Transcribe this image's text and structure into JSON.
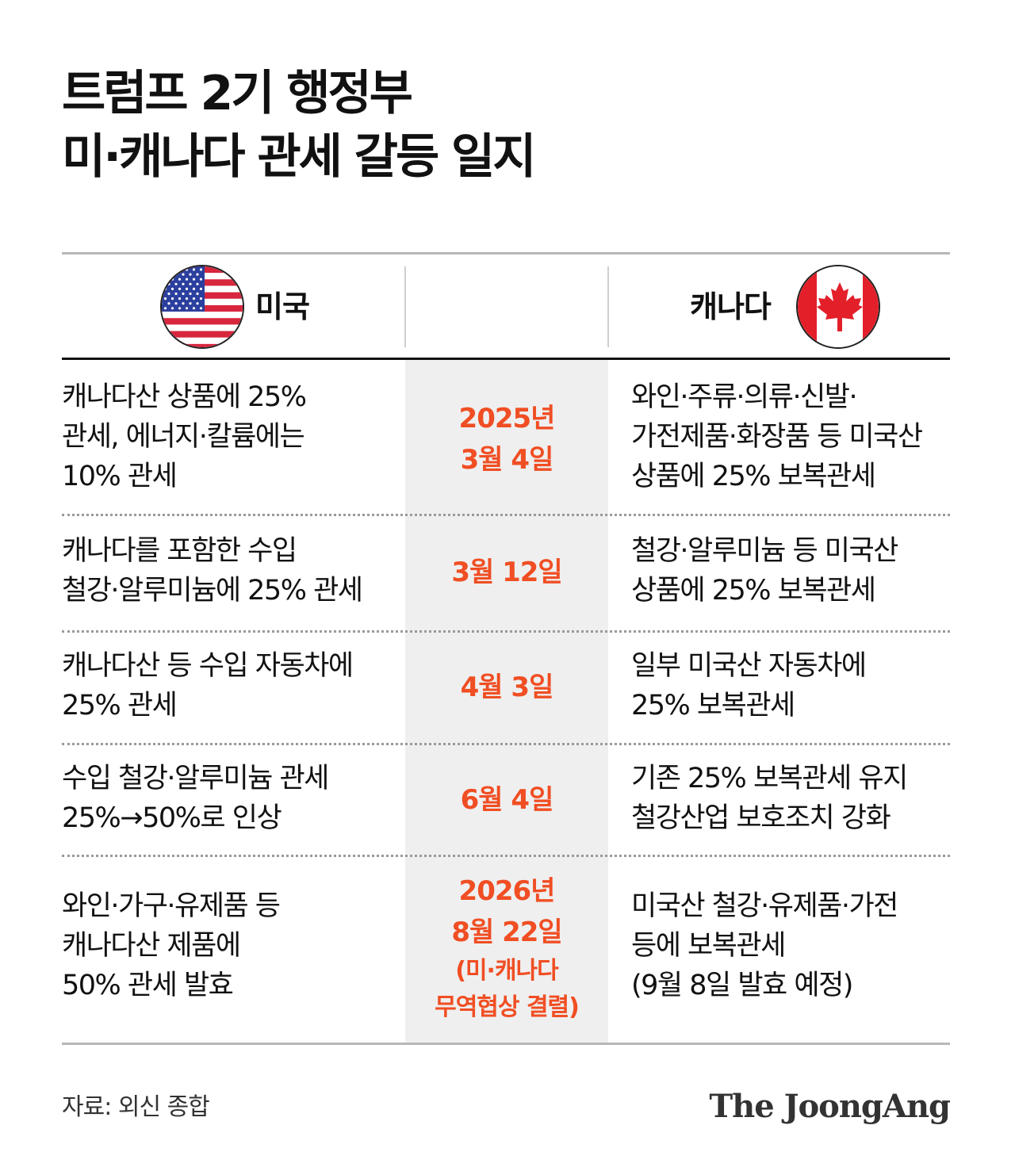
{
  "title": {
    "line1": "트럼프 2기 행정부",
    "line2": "미·캐나다 관세 갈등 일지"
  },
  "header": {
    "left_country": "미국",
    "right_country": "캐나다",
    "left_flag_icon": "us-flag-icon",
    "right_flag_icon": "canada-flag-icon"
  },
  "colors": {
    "accent": "#f04e23",
    "mid_column_bg": "#efefef",
    "us_red": "#d7263d",
    "us_blue": "#2b3f9e",
    "canada_red": "#e3202a"
  },
  "rows": [
    {
      "us": [
        "캐나다산 상품에 25%",
        "관세, 에너지·칼륨에는",
        "10% 관세"
      ],
      "date": [
        "2025년",
        "3월 4일"
      ],
      "note": [],
      "canada": [
        "와인·주류·의류·신발·",
        "가전제품·화장품 등 미국산",
        "상품에 25% 보복관세"
      ]
    },
    {
      "us": [
        "캐나다를 포함한 수입",
        "철강·알루미늄에 25% 관세"
      ],
      "date": [
        "3월 12일"
      ],
      "note": [],
      "canada": [
        "철강·알루미늄 등 미국산",
        "상품에 25% 보복관세"
      ]
    },
    {
      "us": [
        "캐나다산 등 수입 자동차에",
        "25% 관세"
      ],
      "date": [
        "4월 3일"
      ],
      "note": [],
      "canada": [
        "일부 미국산 자동차에",
        "25% 보복관세"
      ]
    },
    {
      "us": [
        "수입 철강·알루미늄 관세",
        "25%→50%로 인상"
      ],
      "date": [
        "6월 4일"
      ],
      "note": [],
      "canada": [
        "기존 25% 보복관세 유지",
        "철강산업 보호조치 강화"
      ]
    },
    {
      "us": [
        "와인·가구·유제품 등",
        "캐나다산 제품에",
        "50% 관세 발효"
      ],
      "date": [
        "2026년",
        "8월 22일"
      ],
      "note": [
        "(미·캐나다",
        "무역협상 결렬)"
      ],
      "canada": [
        "미국산 철강·유제품·가전",
        "등에 보복관세",
        "(9월 8일 발효 예정)"
      ]
    }
  ],
  "footer": {
    "source": "자료: 외신 종합",
    "brand": "The JoongAng"
  }
}
